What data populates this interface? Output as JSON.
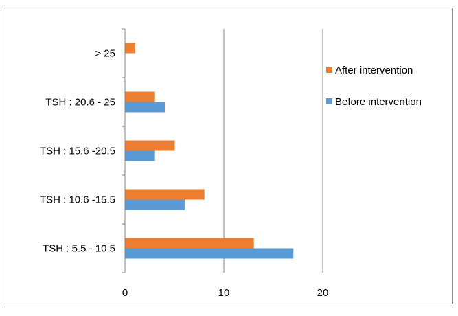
{
  "chart_data": {
    "type": "bar",
    "orientation": "horizontal",
    "categories": [
      "TSH : 5.5 - 10.5",
      "TSH : 10.6 -15.5",
      "TSH : 15.6 -20.5",
      "TSH : 20.6 - 25",
      "> 25"
    ],
    "series": [
      {
        "name": "Before intervention",
        "color": "#5B9BD5",
        "values": [
          17,
          6,
          3,
          4,
          0
        ]
      },
      {
        "name": "After intervention",
        "color": "#ED7D31",
        "values": [
          13,
          8,
          5,
          3,
          1
        ]
      }
    ],
    "x_ticks": [
      "0",
      "10",
      "20"
    ],
    "xlim": [
      0,
      20
    ],
    "gridlines": true,
    "legend_position": "right",
    "title": "",
    "xlabel": "",
    "ylabel": ""
  }
}
